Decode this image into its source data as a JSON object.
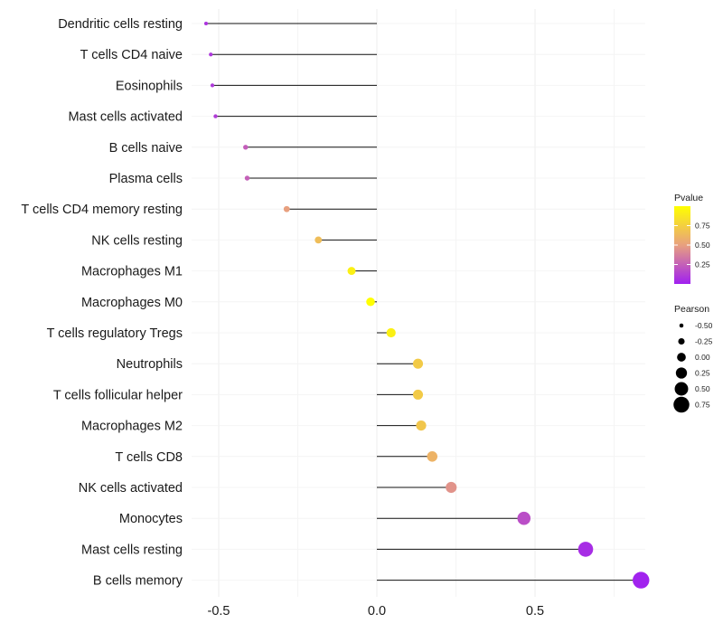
{
  "chart_data": {
    "type": "lollipop",
    "categories": [
      "Dendritic cells resting",
      "T cells CD4 naive",
      "Eosinophils",
      "Mast cells activated",
      "B cells naive",
      "Plasma cells",
      "T cells CD4 memory resting",
      "NK cells resting",
      "Macrophages M1",
      "Macrophages M0",
      "T cells regulatory  Tregs ",
      "Neutrophils",
      "T cells follicular helper",
      "Macrophages M2",
      "T cells CD8",
      "NK cells activated",
      "Monocytes",
      "Mast cells resting",
      "B cells memory"
    ],
    "series": [
      {
        "name": "Pearson",
        "values": [
          -0.54,
          -0.525,
          -0.52,
          -0.51,
          -0.415,
          -0.41,
          -0.285,
          -0.185,
          -0.08,
          -0.02,
          0.045,
          0.13,
          0.13,
          0.14,
          0.175,
          0.235,
          0.465,
          0.66,
          0.835
        ]
      },
      {
        "name": "Pvalue",
        "values": [
          0.08,
          0.09,
          0.1,
          0.11,
          0.24,
          0.25,
          0.5,
          0.65,
          0.92,
          1.0,
          0.92,
          0.72,
          0.72,
          0.7,
          0.6,
          0.45,
          0.18,
          0.05,
          0.01
        ]
      }
    ],
    "xlim": [
      -0.58,
      0.88
    ],
    "x_ticks": [
      -0.5,
      0.0,
      0.5
    ],
    "x_tick_labels": [
      "-0.5",
      "0.0",
      "0.5"
    ],
    "xlabel": "",
    "ylabel": "",
    "grid": true,
    "legend_color": {
      "title": "Pvalue",
      "ticks": [
        0.25,
        0.5,
        0.75
      ],
      "tick_labels": [
        "0.25",
        "0.50",
        "0.75"
      ],
      "range": [
        0.0,
        1.0
      ],
      "low_color": "#a020f0",
      "mid_color": "#e8a07f",
      "high_color": "#ffff00"
    },
    "legend_size": {
      "title": "Pearson",
      "values": [
        -0.5,
        -0.25,
        0.0,
        0.25,
        0.5,
        0.75
      ],
      "labels": [
        "-0.50",
        "-0.25",
        "0.00",
        "0.25",
        "0.50",
        "0.75"
      ]
    },
    "legend_position": "right"
  }
}
